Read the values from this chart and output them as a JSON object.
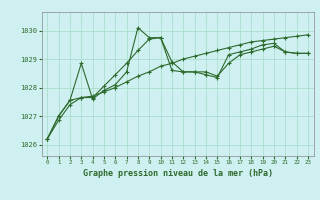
{
  "bg_color": "#cff0f0",
  "grid_color": "#aaddcc",
  "line_color": "#2d6a2d",
  "marker_color": "#2d6a2d",
  "xlabel": "Graphe pression niveau de la mer (hPa)",
  "ylim": [
    1025.6,
    1030.65
  ],
  "xlim": [
    -0.5,
    23.5
  ],
  "yticks": [
    1026,
    1027,
    1028,
    1029,
    1030
  ],
  "xticks": [
    0,
    1,
    2,
    3,
    4,
    5,
    6,
    7,
    8,
    9,
    10,
    11,
    12,
    13,
    14,
    15,
    16,
    17,
    18,
    19,
    20,
    21,
    22,
    23
  ],
  "series": [
    [
      1026.2,
      1026.85,
      1027.4,
      1027.65,
      1027.7,
      1027.85,
      1028.0,
      1028.2,
      1028.4,
      1028.55,
      1028.75,
      1028.85,
      1029.0,
      1029.1,
      1029.2,
      1029.3,
      1029.4,
      1029.5,
      1029.6,
      1029.65,
      1029.7,
      1029.75,
      1029.8,
      1029.85
    ],
    [
      1026.2,
      1027.0,
      1027.55,
      1028.85,
      1027.6,
      1027.9,
      1028.1,
      1028.55,
      1030.1,
      1029.75,
      1029.75,
      1028.6,
      1028.55,
      1028.55,
      1028.45,
      1028.35,
      1029.15,
      1029.25,
      1029.35,
      1029.5,
      1029.55,
      1029.25,
      1029.2,
      1029.2
    ],
    [
      1026.2,
      1027.0,
      1027.55,
      1027.65,
      1027.65,
      1028.05,
      1028.45,
      1028.85,
      1029.3,
      1029.7,
      1029.75,
      1028.9,
      1028.55,
      1028.55,
      1028.55,
      1028.4,
      1028.85,
      1029.15,
      1029.25,
      1029.35,
      1029.45,
      1029.25,
      1029.2,
      1029.2
    ]
  ]
}
